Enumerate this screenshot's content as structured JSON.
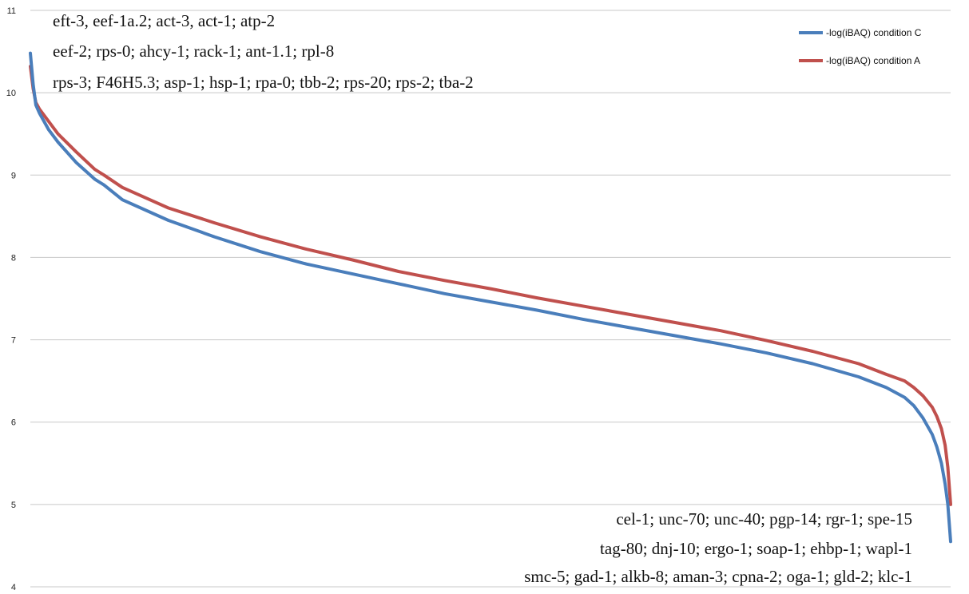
{
  "chart_data": {
    "type": "line",
    "title": "",
    "xlabel": "",
    "ylabel": "",
    "ylim": [
      4,
      11
    ],
    "yticks": [
      4,
      5,
      6,
      7,
      8,
      9,
      10,
      11
    ],
    "grid": "horizontal",
    "legend_position": "top-right",
    "x_description": "proteins ranked by abundance (unlabeled axis)",
    "series": [
      {
        "name": "-log(iBAQ) condition C",
        "color": "#4a7ebb",
        "x": [
          0,
          0.3,
          0.6,
          1,
          2,
          3,
          5,
          7,
          8,
          10,
          15,
          20,
          25,
          30,
          35,
          40,
          45,
          50,
          55,
          60,
          65,
          70,
          75,
          80,
          85,
          90,
          93,
          95,
          96,
          97,
          98,
          98.5,
          99,
          99.4,
          99.7,
          100
        ],
        "y": [
          10.48,
          10.1,
          9.85,
          9.75,
          9.55,
          9.4,
          9.15,
          8.95,
          8.88,
          8.7,
          8.45,
          8.25,
          8.07,
          7.92,
          7.8,
          7.68,
          7.56,
          7.46,
          7.36,
          7.25,
          7.15,
          7.05,
          6.95,
          6.84,
          6.71,
          6.55,
          6.42,
          6.3,
          6.2,
          6.05,
          5.85,
          5.7,
          5.5,
          5.25,
          5.0,
          4.55
        ]
      },
      {
        "name": "-log(iBAQ) condition A",
        "color": "#c0504d",
        "x": [
          0,
          0.3,
          0.6,
          1,
          2,
          3,
          5,
          7,
          8,
          10,
          15,
          20,
          25,
          30,
          35,
          40,
          45,
          50,
          55,
          60,
          65,
          70,
          75,
          80,
          85,
          90,
          93,
          95,
          96,
          97,
          98,
          98.5,
          99,
          99.4,
          99.7,
          100
        ],
        "y": [
          10.32,
          10.05,
          9.88,
          9.8,
          9.65,
          9.5,
          9.28,
          9.07,
          9.0,
          8.85,
          8.6,
          8.42,
          8.25,
          8.1,
          7.97,
          7.83,
          7.72,
          7.62,
          7.51,
          7.41,
          7.31,
          7.21,
          7.11,
          6.99,
          6.86,
          6.71,
          6.58,
          6.5,
          6.42,
          6.32,
          6.18,
          6.07,
          5.92,
          5.72,
          5.45,
          5.0
        ]
      }
    ],
    "annotations": {
      "top": [
        "eft-3, eef-1a.2; act-3, act-1; atp-2",
        "eef-2; rps-0; ahcy-1; rack-1; ant-1.1; rpl-8",
        "rps-3; F46H5.3; asp-1; hsp-1; rpa-0; tbb-2; rps-20; rps-2; tba-2"
      ],
      "bottom": [
        "cel-1; unc-70; unc-40; pgp-14; rgr-1; spe-15",
        "tag-80; dnj-10; ergo-1; soap-1; ehbp-1; wapl-1",
        "smc-5; gad-1; alkb-8; aman-3; cpna-2; oga-1; gld-2; klc-1"
      ]
    }
  }
}
